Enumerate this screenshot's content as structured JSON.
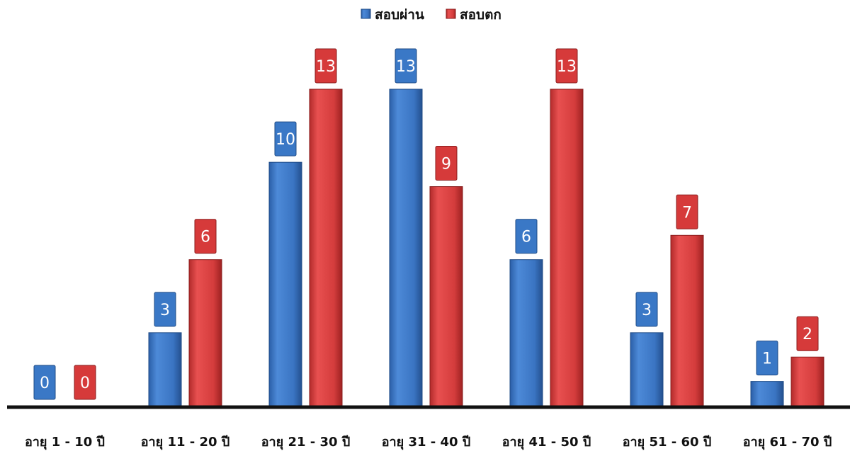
{
  "chart_data": {
    "type": "bar",
    "categories": [
      "อายุ 1 - 10  ปี",
      "อายุ 11 - 20 ปี",
      "อายุ 21 - 30 ปี",
      "อายุ 31 - 40 ปี",
      "อายุ 41 - 50 ปี",
      "อายุ 51 - 60 ปี",
      "อายุ 61 - 70 ปี"
    ],
    "series": [
      {
        "name": "สอบผ่าน",
        "color": "#3a78c6",
        "values": [
          0,
          3,
          10,
          13,
          6,
          3,
          1
        ]
      },
      {
        "name": "สอบตก",
        "color": "#d63a3a",
        "values": [
          0,
          6,
          13,
          9,
          13,
          7,
          2
        ]
      }
    ],
    "ylim": [
      0,
      13
    ],
    "grid": false,
    "legend_position": "top-center",
    "data_labels": true
  }
}
